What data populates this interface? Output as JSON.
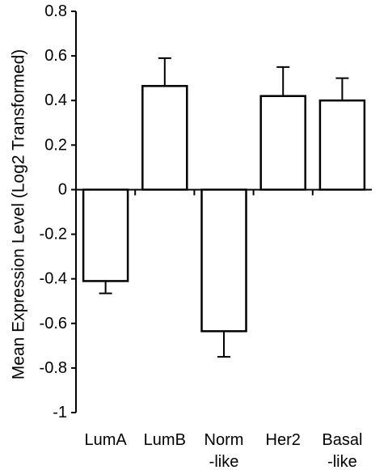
{
  "chart_data": {
    "type": "bar",
    "ylabel": "Mean Expression Level (Log2 Transformed)",
    "ylim": [
      -1,
      0.8
    ],
    "yticks": [
      "0.8",
      "0.6",
      "0.4",
      "0.2",
      "0",
      "-0.2",
      "-0.4",
      "-0.6",
      "-0.8",
      "-1"
    ],
    "categories": [
      [
        "LumA"
      ],
      [
        "LumB"
      ],
      [
        "Norm",
        "-like"
      ],
      [
        "Her2"
      ],
      [
        "Basal",
        "-like"
      ]
    ],
    "values": [
      -0.41,
      0.465,
      -0.635,
      0.42,
      0.4
    ],
    "errors": [
      0.055,
      0.125,
      0.115,
      0.13,
      0.1
    ],
    "bar_fill": "#ffffff",
    "bar_stroke": "#000000",
    "grid": false
  }
}
